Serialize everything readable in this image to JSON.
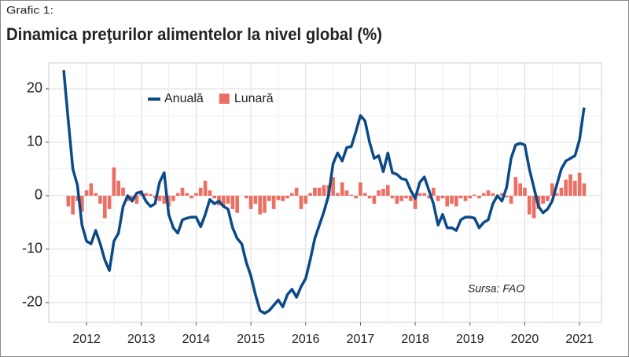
{
  "chart_data": {
    "type": "bar_line",
    "subtitle": "Grafic 1:",
    "title": "Dinamica preţurilor alimentelor la nivel global (%)",
    "annotation": "Sursa: FAO",
    "x": [
      2011.583,
      2011.667,
      2011.75,
      2011.833,
      2011.917,
      2012,
      2012.083,
      2012.167,
      2012.25,
      2012.333,
      2012.417,
      2012.5,
      2012.583,
      2012.667,
      2012.75,
      2012.833,
      2012.917,
      2013,
      2013.083,
      2013.167,
      2013.25,
      2013.333,
      2013.417,
      2013.5,
      2013.583,
      2013.667,
      2013.75,
      2013.833,
      2013.917,
      2014,
      2014.083,
      2014.167,
      2014.25,
      2014.333,
      2014.417,
      2014.5,
      2014.583,
      2014.667,
      2014.75,
      2014.833,
      2014.917,
      2015,
      2015.083,
      2015.167,
      2015.25,
      2015.333,
      2015.417,
      2015.5,
      2015.583,
      2015.667,
      2015.75,
      2015.833,
      2015.917,
      2016,
      2016.083,
      2016.167,
      2016.25,
      2016.333,
      2016.417,
      2016.5,
      2016.583,
      2016.667,
      2016.75,
      2016.833,
      2016.917,
      2017,
      2017.083,
      2017.167,
      2017.25,
      2017.333,
      2017.417,
      2017.5,
      2017.583,
      2017.667,
      2017.75,
      2017.833,
      2017.917,
      2018,
      2018.083,
      2018.167,
      2018.25,
      2018.333,
      2018.417,
      2018.5,
      2018.583,
      2018.667,
      2018.75,
      2018.833,
      2018.917,
      2019,
      2019.083,
      2019.167,
      2019.25,
      2019.333,
      2019.417,
      2019.5,
      2019.583,
      2019.667,
      2019.75,
      2019.833,
      2019.917,
      2020,
      2020.083,
      2020.167,
      2020.25,
      2020.333,
      2020.417,
      2020.5,
      2020.583,
      2020.667,
      2020.75,
      2020.833,
      2020.917,
      2021,
      2021.083
    ],
    "series": [
      {
        "name": "Anuală",
        "type": "line",
        "color": "#0b4a87",
        "values": [
          23.5,
          14,
          5,
          2,
          -5.5,
          -8.5,
          -9,
          -6.5,
          -9,
          -12,
          -14,
          -8.5,
          -7,
          -2,
          0,
          -1,
          0.5,
          0.7,
          -1,
          -2,
          -1.5,
          2.5,
          4.3,
          -3.5,
          -6,
          -7,
          -4.5,
          -4.2,
          -4,
          -4,
          -5.8,
          -3.5,
          -0.7,
          -1.5,
          -1,
          -2,
          -2.5,
          -6,
          -8,
          -9,
          -12.5,
          -15,
          -18.5,
          -21.5,
          -22,
          -21.5,
          -20.5,
          -19.5,
          -20.8,
          -18.5,
          -17.5,
          -19,
          -17,
          -15.5,
          -12,
          -8,
          -5.5,
          -3,
          0,
          6,
          8,
          6.5,
          9,
          9.2,
          12,
          15,
          14,
          10,
          7,
          7.5,
          4.5,
          8,
          4.3,
          4,
          3.2,
          3,
          1,
          -0.5,
          2.5,
          3.5,
          1,
          -1.5,
          -5.5,
          -3.5,
          -6,
          -6,
          -6.5,
          -4.5,
          -4,
          -4,
          -4.2,
          -6,
          -5,
          -4.5,
          -1.5,
          0,
          -1,
          1.5,
          7,
          9.5,
          9.8,
          9.5,
          5,
          1.5,
          -2,
          -3.2,
          -2.5,
          -1,
          2,
          5,
          6.5,
          7,
          7.5,
          10.5,
          16.5
        ]
      },
      {
        "name": "Lunară",
        "type": "bar",
        "color": "#ec6f63",
        "values": [
          0,
          -2,
          -3.5,
          -1,
          -3,
          1,
          2.3,
          0.5,
          -1.5,
          -4.2,
          -2.5,
          5.3,
          2.8,
          1.5,
          -1,
          -0.5,
          -1.5,
          1,
          0.5,
          0.3,
          -0.5,
          -1,
          -1.5,
          -2,
          -1,
          0.5,
          1.5,
          0.5,
          -0.5,
          0.5,
          1.5,
          2.8,
          1,
          -0.5,
          -1.8,
          -2,
          -1.5,
          -2.5,
          -3.2,
          0,
          -0.5,
          -2.5,
          -1.5,
          -3.5,
          -3.2,
          -1,
          -2.5,
          -0.8,
          -1,
          -0.5,
          0.5,
          1.5,
          -2.5,
          -1.5,
          0.5,
          1.5,
          1.5,
          2,
          2,
          3.5,
          0.5,
          2.5,
          1,
          0.2,
          -0.5,
          2.5,
          0.5,
          -0.5,
          -1.5,
          1,
          1.3,
          2,
          -0.5,
          -1.5,
          -1,
          -0.5,
          -1,
          -2.5,
          0.5,
          0.5,
          -0.5,
          1.5,
          -1,
          -0.5,
          -2,
          -1.5,
          -2,
          -0.5,
          -1,
          -0.5,
          0.2,
          -0.5,
          0.5,
          1,
          0.5,
          -0.5,
          0.5,
          -0.3,
          -1.5,
          3.5,
          2.3,
          1.5,
          -3.5,
          -4.2,
          -2.5,
          -1.5,
          -1,
          2.3,
          0.5,
          1.5,
          3,
          4,
          2.8,
          4.3,
          2.3
        ]
      }
    ],
    "xlim": [
      2011.31,
      2021.4
    ],
    "xticks": [
      2012,
      2013,
      2014,
      2015,
      2016,
      2017,
      2018,
      2019,
      2020,
      2021
    ],
    "ylim": [
      -23.7,
      24.85
    ],
    "yticks": [
      -20,
      -10,
      0,
      10,
      20
    ],
    "grid": true
  }
}
